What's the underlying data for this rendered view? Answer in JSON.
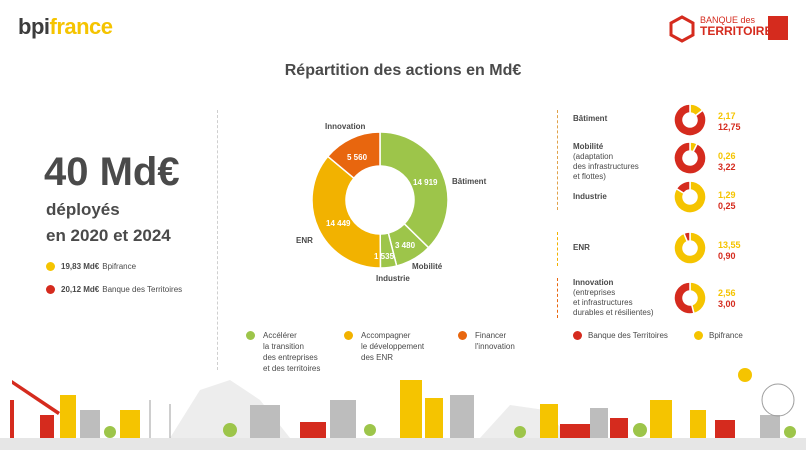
{
  "header": {
    "logo_bpi_part1": "bpi",
    "logo_bpi_part2": "france",
    "logo_bdt_line1": "BANQUE des",
    "logo_bdt_line2": "TERRITOIRES"
  },
  "title": "Répartition des actions en Md€",
  "summary": {
    "total": "40 Md€",
    "line1": "déployés",
    "line2": "en 2020 et 2024",
    "legend": [
      {
        "value": "19,83 Md€",
        "label": "Bpifrance",
        "color": "#f5c400"
      },
      {
        "value": "20,12 Md€",
        "label": "Banque des Territoires",
        "color": "#d52b1e"
      }
    ]
  },
  "chart_data": [
    {
      "type": "pie",
      "title": "Répartition des actions en Md€",
      "categories": [
        "Bâtiment",
        "Mobilité",
        "Industrie",
        "ENR",
        "Innovation"
      ],
      "values": [
        14.919,
        3.48,
        1.535,
        14.449,
        5.56
      ],
      "value_labels": [
        "14 919",
        "3 480",
        "1 535",
        "14 449",
        "5 560"
      ],
      "colors": [
        "#9dc54a",
        "#9dc54a",
        "#9dc54a",
        "#f2b200",
        "#e8660e"
      ],
      "legend": [
        {
          "label_lines": [
            "Accélérer",
            "la transition",
            "des entreprises",
            "et des territoires"
          ],
          "color": "#9dc54a"
        },
        {
          "label_lines": [
            "Accompagner",
            "le développement",
            "des ENR"
          ],
          "color": "#f2b200"
        },
        {
          "label_lines": [
            "Financer",
            "l'innovation"
          ],
          "color": "#e8660e"
        }
      ]
    },
    {
      "type": "pie",
      "series": [
        {
          "name": "Bpifrance",
          "color": "#f5c400"
        },
        {
          "name": "Banque des Territoires",
          "color": "#d52b1e"
        }
      ],
      "items": [
        {
          "label": "Bâtiment",
          "details": [],
          "bpifrance": 2.17,
          "bdt": 12.75,
          "bpifrance_label": "2,17",
          "bdt_label": "12,75"
        },
        {
          "label": "Mobilité",
          "details": [
            "(adaptation",
            "des infrastructures",
            "et flottes)"
          ],
          "bpifrance": 0.26,
          "bdt": 3.22,
          "bpifrance_label": "0,26",
          "bdt_label": "3,22"
        },
        {
          "label": "Industrie",
          "details": [],
          "bpifrance": 1.29,
          "bdt": 0.25,
          "bpifrance_label": "1,29",
          "bdt_label": "0,25"
        },
        {
          "label": "ENR",
          "details": [],
          "bpifrance": 13.55,
          "bdt": 0.9,
          "bpifrance_label": "13,55",
          "bdt_label": "0,90"
        },
        {
          "label": "Innovation",
          "details": [
            "(entreprises",
            "et infrastructures",
            "durables et résilientes)"
          ],
          "bpifrance": 2.56,
          "bdt": 3.0,
          "bpifrance_label": "2,56",
          "bdt_label": "3,00"
        }
      ],
      "legend": [
        {
          "label": "Banque des Territoires",
          "color": "#d52b1e"
        },
        {
          "label": "Bpifrance",
          "color": "#f5c400"
        }
      ]
    }
  ]
}
